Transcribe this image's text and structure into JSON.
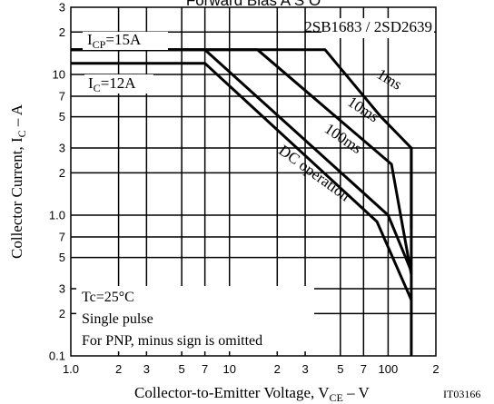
{
  "chart_data": {
    "type": "line",
    "title": "Forward Bias A S O",
    "xlabel": "Collector-to-Emitter Voltage, VCE – V",
    "ylabel": "Collector Current, IC – A",
    "x_scale": "log",
    "y_scale": "log",
    "xlim": [
      1,
      200
    ],
    "ylim": [
      0.1,
      30
    ],
    "x_ticks": [
      {
        "v": 1.0,
        "t": "1.0"
      },
      {
        "v": 2,
        "t": "2"
      },
      {
        "v": 3,
        "t": "3"
      },
      {
        "v": 5,
        "t": "5"
      },
      {
        "v": 7,
        "t": "7"
      },
      {
        "v": 10,
        "t": "10"
      },
      {
        "v": 20,
        "t": "2"
      },
      {
        "v": 30,
        "t": "3"
      },
      {
        "v": 50,
        "t": "5"
      },
      {
        "v": 70,
        "t": "7"
      },
      {
        "v": 100,
        "t": "100"
      },
      {
        "v": 200,
        "t": "2"
      }
    ],
    "y_ticks": [
      {
        "v": 0.1,
        "t": "0.1"
      },
      {
        "v": 0.2,
        "t": "2"
      },
      {
        "v": 0.3,
        "t": "3"
      },
      {
        "v": 0.5,
        "t": "5"
      },
      {
        "v": 0.7,
        "t": "7"
      },
      {
        "v": 1.0,
        "t": "1.0"
      },
      {
        "v": 2,
        "t": "2"
      },
      {
        "v": 3,
        "t": "3"
      },
      {
        "v": 5,
        "t": "5"
      },
      {
        "v": 7,
        "t": "7"
      },
      {
        "v": 10,
        "t": "10"
      },
      {
        "v": 20,
        "t": "2"
      },
      {
        "v": 30,
        "t": "3"
      }
    ],
    "series": [
      {
        "name": "1ms",
        "points": [
          [
            1,
            15
          ],
          [
            40,
            15
          ],
          [
            90,
            5
          ],
          [
            140,
            3
          ],
          [
            140,
            0.8
          ]
        ]
      },
      {
        "name": "10ms",
        "points": [
          [
            1,
            15
          ],
          [
            15,
            15
          ],
          [
            105,
            2.3
          ],
          [
            140,
            0.38
          ]
        ]
      },
      {
        "name": "100ms",
        "points": [
          [
            1,
            15
          ],
          [
            7,
            15
          ],
          [
            100,
            1.0
          ],
          [
            140,
            0.4
          ]
        ]
      },
      {
        "name": "DC operation",
        "points": [
          [
            1,
            12
          ],
          [
            7,
            12
          ],
          [
            85,
            0.9
          ],
          [
            140,
            0.25
          ]
        ]
      }
    ],
    "vlines": [
      {
        "x": 140,
        "y_range": [
          0.1,
          3
        ]
      }
    ],
    "annotations": {
      "icp": "ICP=15A",
      "ic": "IC=12A",
      "part": "2SB1683 / 2SD2639",
      "c1": "1ms",
      "c2": "10ms",
      "c3": "100ms",
      "c4": "DC operation",
      "cond1": "Tc=25°C",
      "cond2": "Single pulse",
      "cond3": "For PNP, minus sign is omitted",
      "code": "IT03166"
    }
  }
}
